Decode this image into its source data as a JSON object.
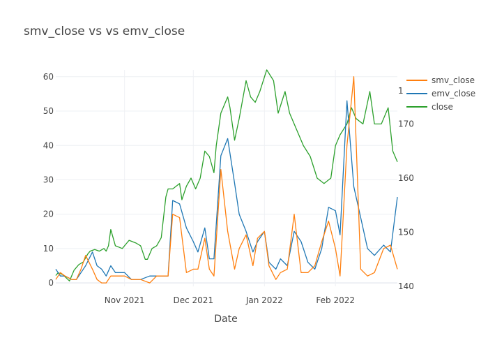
{
  "chart_data": {
    "type": "line",
    "title": "smv_close vs vs emv_close",
    "xlabel": "Date",
    "ylabel": "",
    "x_axis": {
      "type": "date",
      "range": [
        "2021-10-02",
        "2022-02-28"
      ],
      "tick_values": [
        "2021-11-01",
        "2021-12-01",
        "2022-01-01",
        "2022-02-01"
      ],
      "tick_labels": [
        "Nov 2021",
        "Dec 2021",
        "Jan 2022",
        "Feb 2022"
      ]
    },
    "y_axis_left": {
      "range": [
        -1,
        62
      ],
      "ticks": [
        0,
        10,
        20,
        30,
        40,
        50,
        60
      ]
    },
    "y_axis_right": {
      "range": [
        140,
        180
      ],
      "ticks": [
        140,
        150,
        160,
        170
      ],
      "top_tick_partial": "1"
    },
    "grid": true,
    "legend_position": "top-right",
    "series": [
      {
        "name": "smv_close",
        "color": "#ff7f0e",
        "axis": "left",
        "x": [
          "2021-10-02",
          "2021-10-04",
          "2021-10-06",
          "2021-10-09",
          "2021-10-11",
          "2021-10-13",
          "2021-10-15",
          "2021-10-18",
          "2021-10-20",
          "2021-10-22",
          "2021-10-24",
          "2021-10-26",
          "2021-10-28",
          "2021-11-01",
          "2021-11-04",
          "2021-11-08",
          "2021-11-12",
          "2021-11-15",
          "2021-11-18",
          "2021-11-20",
          "2021-11-22",
          "2021-11-25",
          "2021-11-28",
          "2021-12-01",
          "2021-12-03",
          "2021-12-06",
          "2021-12-08",
          "2021-12-10",
          "2021-12-13",
          "2021-12-16",
          "2021-12-19",
          "2021-12-21",
          "2021-12-24",
          "2021-12-27",
          "2021-12-29",
          "2022-01-01",
          "2022-01-03",
          "2022-01-06",
          "2022-01-08",
          "2022-01-11",
          "2022-01-14",
          "2022-01-17",
          "2022-01-20",
          "2022-01-23",
          "2022-01-26",
          "2022-01-29",
          "2022-02-01",
          "2022-02-03",
          "2022-02-06",
          "2022-02-09",
          "2022-02-12",
          "2022-02-15",
          "2022-02-18",
          "2022-02-22",
          "2022-02-25",
          "2022-02-28"
        ],
        "y": [
          1,
          3,
          2,
          1,
          1,
          4,
          8,
          4,
          1,
          0,
          0,
          2,
          2,
          2,
          1,
          1,
          0,
          2,
          2,
          2,
          20,
          19,
          3,
          4,
          4,
          13,
          4,
          2,
          33,
          15,
          4,
          10,
          14,
          5,
          13,
          15,
          5,
          1,
          3,
          4,
          20,
          3,
          3,
          5,
          12,
          18,
          10,
          2,
          40,
          60,
          4,
          2,
          3,
          10,
          11,
          4
        ]
      },
      {
        "name": "emv_close",
        "color": "#1f77b4",
        "axis": "left",
        "x": [
          "2021-10-02",
          "2021-10-04",
          "2021-10-06",
          "2021-10-09",
          "2021-10-11",
          "2021-10-13",
          "2021-10-15",
          "2021-10-18",
          "2021-10-20",
          "2021-10-22",
          "2021-10-24",
          "2021-10-26",
          "2021-10-28",
          "2021-11-01",
          "2021-11-04",
          "2021-11-08",
          "2021-11-12",
          "2021-11-15",
          "2021-11-18",
          "2021-11-20",
          "2021-11-22",
          "2021-11-25",
          "2021-11-28",
          "2021-12-01",
          "2021-12-03",
          "2021-12-06",
          "2021-12-08",
          "2021-12-10",
          "2021-12-13",
          "2021-12-16",
          "2021-12-19",
          "2021-12-21",
          "2021-12-24",
          "2021-12-27",
          "2021-12-29",
          "2022-01-01",
          "2022-01-03",
          "2022-01-06",
          "2022-01-08",
          "2022-01-11",
          "2022-01-14",
          "2022-01-17",
          "2022-01-20",
          "2022-01-23",
          "2022-01-26",
          "2022-01-29",
          "2022-02-01",
          "2022-02-03",
          "2022-02-06",
          "2022-02-09",
          "2022-02-12",
          "2022-02-15",
          "2022-02-18",
          "2022-02-22",
          "2022-02-25",
          "2022-02-28"
        ],
        "y": [
          4,
          2,
          2,
          1,
          1,
          3,
          5,
          9,
          5,
          4,
          2,
          5,
          3,
          3,
          1,
          1,
          2,
          2,
          2,
          2,
          24,
          23,
          16,
          12,
          9,
          16,
          7,
          7,
          37,
          42,
          29,
          20,
          15,
          9,
          12,
          15,
          6,
          4,
          7,
          5,
          15,
          12,
          6,
          4,
          10,
          22,
          21,
          14,
          53,
          28,
          19,
          10,
          8,
          11,
          9,
          25
        ]
      },
      {
        "name": "close",
        "color": "#2ca02c",
        "axis": "right",
        "x": [
          "2021-10-02",
          "2021-10-03",
          "2021-10-05",
          "2021-10-08",
          "2021-10-10",
          "2021-10-12",
          "2021-10-14",
          "2021-10-16",
          "2021-10-17",
          "2021-10-19",
          "2021-10-21",
          "2021-10-23",
          "2021-10-24",
          "2021-10-25",
          "2021-10-26",
          "2021-10-28",
          "2021-10-31",
          "2021-11-02",
          "2021-11-03",
          "2021-11-06",
          "2021-11-08",
          "2021-11-10",
          "2021-11-11",
          "2021-11-13",
          "2021-11-15",
          "2021-11-17",
          "2021-11-19",
          "2021-11-20",
          "2021-11-22",
          "2021-11-25",
          "2021-11-26",
          "2021-11-28",
          "2021-11-30",
          "2021-12-02",
          "2021-12-04",
          "2021-12-06",
          "2021-12-08",
          "2021-12-10",
          "2021-12-11",
          "2021-12-13",
          "2021-12-16",
          "2021-12-17",
          "2021-12-19",
          "2021-12-21",
          "2021-12-24",
          "2021-12-26",
          "2021-12-28",
          "2021-12-30",
          "2022-01-02",
          "2022-01-05",
          "2022-01-07",
          "2022-01-10",
          "2022-01-12",
          "2022-01-15",
          "2022-01-18",
          "2022-01-21",
          "2022-01-24",
          "2022-01-27",
          "2022-01-30",
          "2022-02-01",
          "2022-02-03",
          "2022-02-06",
          "2022-02-08",
          "2022-02-10",
          "2022-02-13",
          "2022-02-16",
          "2022-02-18",
          "2022-02-21",
          "2022-02-24",
          "2022-02-26",
          "2022-02-28"
        ],
        "y": [
          142,
          142.5,
          142.2,
          141,
          143,
          144,
          144.5,
          146,
          146.5,
          146.8,
          146.5,
          147,
          146.5,
          147.5,
          150.5,
          147.5,
          147,
          148,
          148.5,
          148,
          147.5,
          145,
          145,
          147,
          147.5,
          149,
          156.5,
          158,
          158,
          159,
          156,
          158.5,
          160,
          158,
          160,
          165,
          164,
          161,
          166,
          172,
          175,
          173,
          167,
          171,
          178,
          175,
          174,
          176,
          180,
          178,
          172,
          176,
          172,
          169,
          166,
          164,
          160,
          159,
          160,
          166,
          168,
          170,
          173,
          171,
          170,
          176,
          170,
          170,
          173,
          165,
          163
        ]
      }
    ]
  }
}
